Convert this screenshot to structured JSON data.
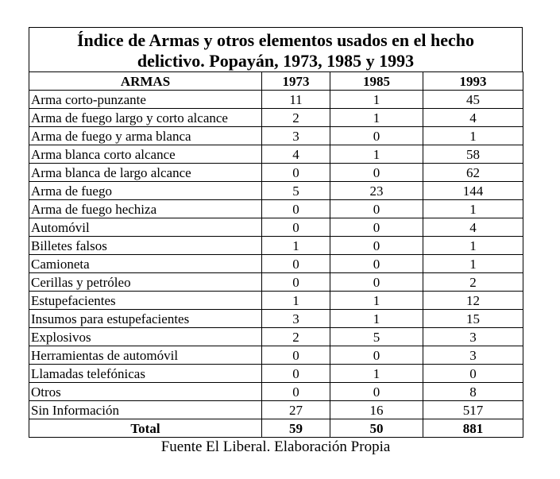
{
  "title": {
    "line1": "Índice de Armas y otros elementos usados en el hecho",
    "line2": "delictivo. Popayán, 1973, 1985 y 1993"
  },
  "headers": [
    "ARMAS",
    "1973",
    "1985",
    "1993"
  ],
  "rows": [
    {
      "name": "Arma corto-punzante",
      "y1973": "11",
      "y1985": "1",
      "y1993": "45"
    },
    {
      "name": "Arma de fuego largo y corto alcance",
      "y1973": "2",
      "y1985": "1",
      "y1993": "4"
    },
    {
      "name": "Arma de fuego y arma blanca",
      "y1973": "3",
      "y1985": "0",
      "y1993": "1"
    },
    {
      "name": "Arma blanca corto alcance",
      "y1973": "4",
      "y1985": "1",
      "y1993": "58"
    },
    {
      "name": "Arma blanca de largo alcance",
      "y1973": "0",
      "y1985": "0",
      "y1993": "62"
    },
    {
      "name": "Arma de fuego",
      "y1973": "5",
      "y1985": "23",
      "y1993": "144"
    },
    {
      "name": "Arma de fuego hechiza",
      "y1973": "0",
      "y1985": "0",
      "y1993": "1"
    },
    {
      "name": "Automóvil",
      "y1973": "0",
      "y1985": "0",
      "y1993": "4"
    },
    {
      "name": "Billetes falsos",
      "y1973": "1",
      "y1985": "0",
      "y1993": "1"
    },
    {
      "name": "Camioneta",
      "y1973": "0",
      "y1985": "0",
      "y1993": "1"
    },
    {
      "name": "Cerillas y petróleo",
      "y1973": "0",
      "y1985": "0",
      "y1993": "2"
    },
    {
      "name": "Estupefacientes",
      "y1973": "1",
      "y1985": "1",
      "y1993": "12"
    },
    {
      "name": "Insumos para estupefacientes",
      "y1973": "3",
      "y1985": "1",
      "y1993": "15"
    },
    {
      "name": "Explosivos",
      "y1973": "2",
      "y1985": "5",
      "y1993": "3"
    },
    {
      "name": "Herramientas de automóvil",
      "y1973": "0",
      "y1985": "0",
      "y1993": "3"
    },
    {
      "name": "Llamadas telefónicas",
      "y1973": "0",
      "y1985": "1",
      "y1993": "0"
    },
    {
      "name": "Otros",
      "y1973": "0",
      "y1985": "0",
      "y1993": "8"
    },
    {
      "name": "Sin Información",
      "y1973": "27",
      "y1985": "16",
      "y1993": "517"
    }
  ],
  "total": {
    "name": "Total",
    "y1973": "59",
    "y1985": "50",
    "y1993": "881"
  },
  "source": "Fuente El Liberal. Elaboración Propia"
}
